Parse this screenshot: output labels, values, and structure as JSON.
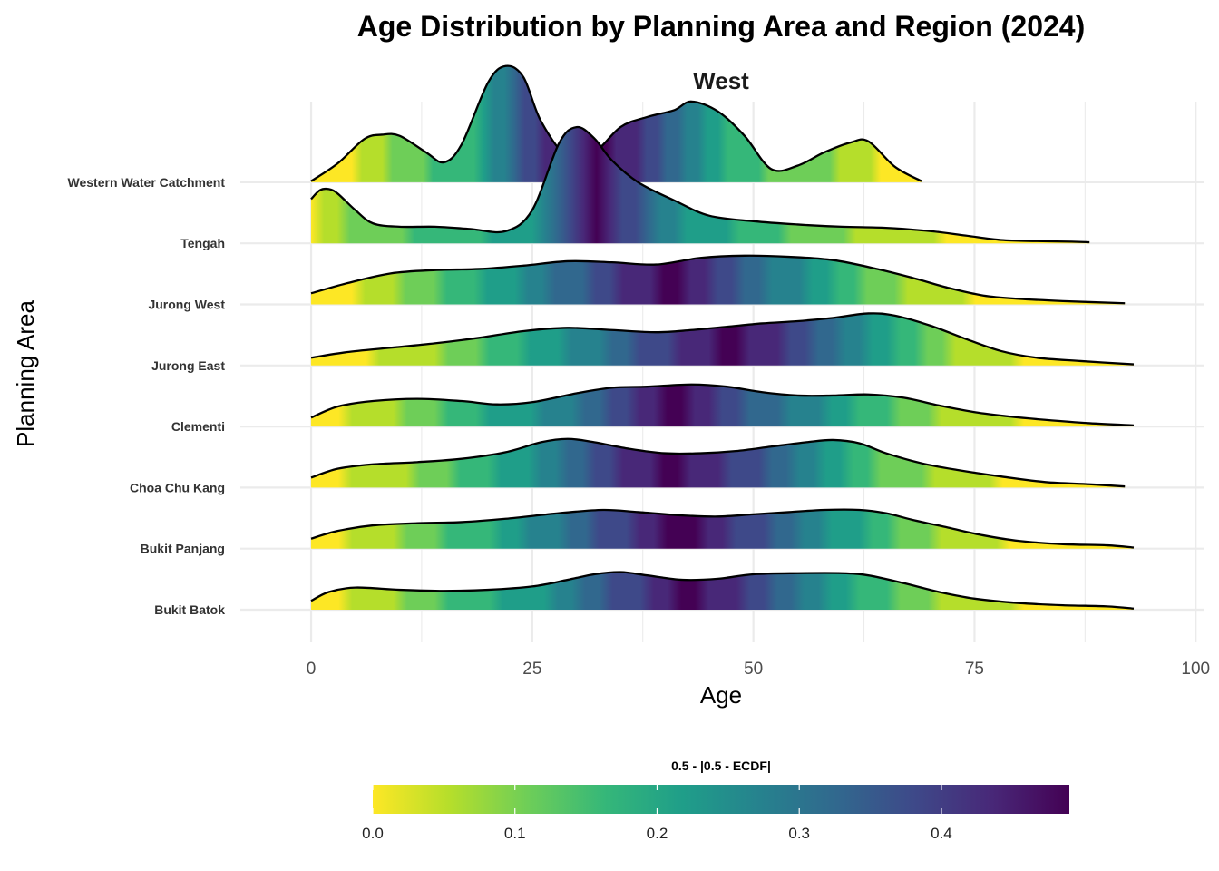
{
  "chart_data": {
    "type": "ridgeline",
    "title": "Age Distribution by Planning Area and Region (2024)",
    "facet": "West",
    "xlabel": "Age",
    "ylabel": "Planning Area",
    "xlim": [
      -8,
      101
    ],
    "x_ticks": [
      0,
      25,
      50,
      75,
      100
    ],
    "grid": true,
    "fill": {
      "variable": "0.5 - |0.5 - ECDF|",
      "palette": "viridis",
      "range": [
        0,
        0.5
      ],
      "ticks": [
        "0.0",
        "0.1",
        "0.2",
        "0.3",
        "0.4"
      ],
      "colors": [
        "#fde725",
        "#b5de2b",
        "#6ece58",
        "#35b779",
        "#1f9e89",
        "#26828e",
        "#31688e",
        "#3e4989",
        "#482878",
        "#440154"
      ]
    },
    "legend_position": "bottom",
    "series": [
      {
        "name": "Bukit Batok",
        "x": [
          0,
          2,
          5,
          10,
          15,
          20,
          25,
          29,
          32,
          35,
          38,
          42,
          46,
          50,
          55,
          60,
          63,
          67,
          71,
          75,
          80,
          85,
          90,
          93
        ],
        "density": [
          0.16,
          0.32,
          0.4,
          0.36,
          0.34,
          0.36,
          0.42,
          0.54,
          0.64,
          0.68,
          0.62,
          0.54,
          0.56,
          0.64,
          0.66,
          0.66,
          0.62,
          0.48,
          0.32,
          0.2,
          0.12,
          0.08,
          0.06,
          0.02
        ]
      },
      {
        "name": "Bukit Panjang",
        "x": [
          0,
          3,
          7,
          12,
          17,
          22,
          28,
          33,
          37,
          42,
          46,
          50,
          54,
          58,
          62,
          65,
          68,
          72,
          76,
          80,
          85,
          90,
          93
        ],
        "density": [
          0.18,
          0.32,
          0.42,
          0.46,
          0.48,
          0.54,
          0.64,
          0.7,
          0.66,
          0.6,
          0.58,
          0.62,
          0.66,
          0.7,
          0.7,
          0.64,
          0.52,
          0.38,
          0.24,
          0.14,
          0.08,
          0.06,
          0.02
        ]
      },
      {
        "name": "Choa Chu Kang",
        "x": [
          0,
          3,
          7,
          12,
          17,
          22,
          26,
          29,
          32,
          36,
          40,
          44,
          48,
          52,
          56,
          59,
          62,
          65,
          69,
          73,
          78,
          83,
          88,
          92
        ],
        "density": [
          0.18,
          0.34,
          0.42,
          0.46,
          0.52,
          0.64,
          0.82,
          0.88,
          0.82,
          0.7,
          0.62,
          0.62,
          0.66,
          0.74,
          0.82,
          0.86,
          0.8,
          0.62,
          0.44,
          0.32,
          0.2,
          0.1,
          0.06,
          0.02
        ]
      },
      {
        "name": "Clementi",
        "x": [
          0,
          3,
          7,
          12,
          17,
          21,
          25,
          30,
          34,
          38,
          43,
          47,
          51,
          55,
          59,
          63,
          67,
          71,
          75,
          79,
          83,
          88,
          93
        ],
        "density": [
          0.16,
          0.36,
          0.46,
          0.5,
          0.46,
          0.4,
          0.44,
          0.6,
          0.7,
          0.72,
          0.76,
          0.72,
          0.62,
          0.56,
          0.56,
          0.58,
          0.52,
          0.38,
          0.26,
          0.18,
          0.12,
          0.06,
          0.02
        ]
      },
      {
        "name": "Jurong East",
        "x": [
          0,
          4,
          9,
          14,
          19,
          24,
          29,
          34,
          39,
          43,
          47,
          51,
          55,
          59,
          63,
          66,
          70,
          74,
          78,
          82,
          87,
          93
        ],
        "density": [
          0.14,
          0.24,
          0.32,
          0.4,
          0.5,
          0.62,
          0.68,
          0.64,
          0.6,
          0.64,
          0.7,
          0.76,
          0.8,
          0.86,
          0.94,
          0.9,
          0.72,
          0.48,
          0.26,
          0.14,
          0.08,
          0.02
        ]
      },
      {
        "name": "Jurong West",
        "x": [
          0,
          4,
          9,
          14,
          19,
          24,
          29,
          34,
          39,
          44,
          49,
          54,
          59,
          64,
          68,
          72,
          76,
          80,
          85,
          92
        ],
        "density": [
          0.2,
          0.38,
          0.56,
          0.62,
          0.64,
          0.7,
          0.78,
          0.76,
          0.72,
          0.84,
          0.88,
          0.86,
          0.8,
          0.64,
          0.48,
          0.3,
          0.16,
          0.1,
          0.06,
          0.02
        ]
      },
      {
        "name": "Tengah",
        "x": [
          0,
          1,
          2,
          3,
          5,
          7,
          10,
          14,
          18,
          22,
          25,
          28,
          30,
          32,
          34,
          37,
          41,
          45,
          50,
          55,
          60,
          65,
          70,
          74,
          78,
          82,
          86,
          88
        ],
        "density": [
          0.8,
          0.96,
          0.98,
          0.9,
          0.6,
          0.36,
          0.3,
          0.3,
          0.26,
          0.22,
          0.6,
          1.8,
          2.1,
          1.9,
          1.5,
          1.1,
          0.78,
          0.5,
          0.4,
          0.34,
          0.3,
          0.28,
          0.22,
          0.14,
          0.06,
          0.04,
          0.03,
          0.02
        ]
      },
      {
        "name": "Western Water Catchment",
        "x": [
          0,
          3,
          6,
          8,
          10,
          13,
          15,
          17,
          20,
          22,
          24,
          26,
          29,
          32,
          35,
          38,
          41,
          43,
          46,
          49,
          52,
          55,
          58,
          61,
          63,
          66,
          69
        ],
        "density": [
          0.02,
          0.34,
          0.78,
          0.86,
          0.84,
          0.54,
          0.36,
          0.68,
          1.8,
          2.1,
          1.9,
          1.1,
          0.46,
          0.54,
          1.0,
          1.18,
          1.3,
          1.46,
          1.28,
          0.84,
          0.24,
          0.3,
          0.54,
          0.72,
          0.74,
          0.28,
          0.02
        ]
      }
    ]
  }
}
